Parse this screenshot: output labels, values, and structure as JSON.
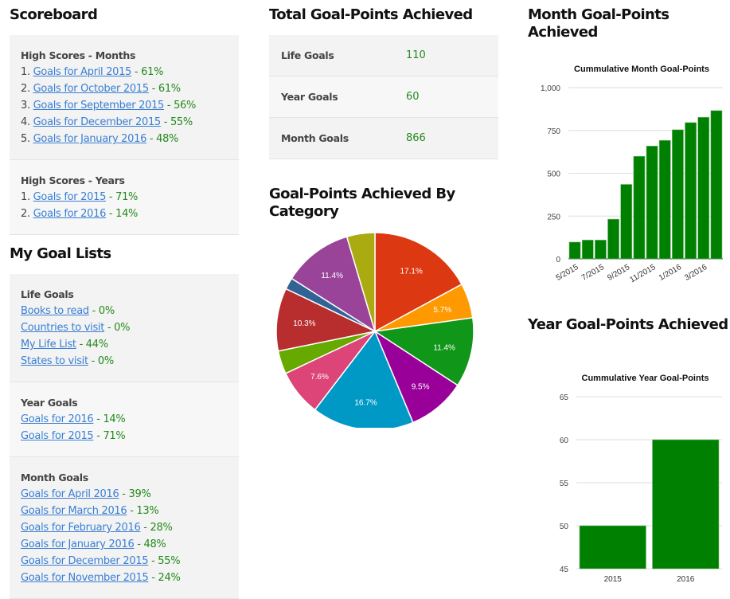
{
  "scoreboard": {
    "title": "Scoreboard",
    "months": {
      "heading": "High Scores - Months",
      "items": [
        {
          "rank": "1. ",
          "label": "Goals for April 2015",
          "pct": " - 61%"
        },
        {
          "rank": "2. ",
          "label": "Goals for October 2015",
          "pct": " - 61%"
        },
        {
          "rank": "3. ",
          "label": "Goals for September 2015",
          "pct": " - 56%"
        },
        {
          "rank": "4. ",
          "label": "Goals for December 2015",
          "pct": " - 55%"
        },
        {
          "rank": "5. ",
          "label": "Goals for January 2016",
          "pct": " - 48%"
        }
      ]
    },
    "years": {
      "heading": "High Scores - Years",
      "items": [
        {
          "rank": "1. ",
          "label": "Goals for 2015",
          "pct": " - 71%"
        },
        {
          "rank": "2. ",
          "label": "Goals for 2016",
          "pct": " - 14%"
        }
      ]
    }
  },
  "goal_lists": {
    "title": "My Goal Lists",
    "life": {
      "heading": "Life Goals",
      "items": [
        {
          "label": "Books to read",
          "pct": " - 0%"
        },
        {
          "label": "Countries to visit",
          "pct": " - 0%"
        },
        {
          "label": "My Life List",
          "pct": " - 44%"
        },
        {
          "label": "States to visit",
          "pct": " - 0%"
        }
      ]
    },
    "year": {
      "heading": "Year Goals",
      "items": [
        {
          "label": "Goals for 2016",
          "pct": " - 14%"
        },
        {
          "label": "Goals for 2015",
          "pct": " - 71%"
        }
      ]
    },
    "month": {
      "heading": "Month Goals",
      "items": [
        {
          "label": "Goals for April 2016",
          "pct": " - 39%"
        },
        {
          "label": "Goals for March 2016",
          "pct": " - 13%"
        },
        {
          "label": "Goals for February 2016",
          "pct": " - 28%"
        },
        {
          "label": "Goals for January 2016",
          "pct": " - 48%"
        },
        {
          "label": "Goals for December 2015",
          "pct": " - 55%"
        },
        {
          "label": "Goals for November 2015",
          "pct": " - 24%"
        }
      ]
    }
  },
  "totals": {
    "title": "Total Goal-Points Achieved",
    "rows": [
      {
        "label": "Life Goals",
        "value": "110"
      },
      {
        "label": "Year Goals",
        "value": "60"
      },
      {
        "label": "Month Goals",
        "value": "866"
      }
    ]
  },
  "category_section": {
    "title": "Goal-Points Achieved By Category"
  },
  "month_section": {
    "title": "Month Goal-Points Achieved"
  },
  "year_section": {
    "title": "Year Goal-Points Achieved"
  },
  "chart_data": [
    {
      "type": "pie",
      "title": "",
      "slices": [
        {
          "value": 17.1,
          "label": "17.1%",
          "color": "#dc3912"
        },
        {
          "value": 5.7,
          "label": "5.7%",
          "color": "#ff9900"
        },
        {
          "value": 11.4,
          "label": "11.4%",
          "color": "#109618"
        },
        {
          "value": 9.5,
          "label": "9.5%",
          "color": "#990099"
        },
        {
          "value": 16.7,
          "label": "16.7%",
          "color": "#0099c6"
        },
        {
          "value": 7.6,
          "label": "7.6%",
          "color": "#dd4477"
        },
        {
          "value": 3.8,
          "label": "",
          "color": "#66aa00"
        },
        {
          "value": 10.3,
          "label": "10.3%",
          "color": "#b82e2e"
        },
        {
          "value": 1.9,
          "label": "",
          "color": "#316395"
        },
        {
          "value": 11.4,
          "label": "11.4%",
          "color": "#994499"
        },
        {
          "value": 4.6,
          "label": "",
          "color": "#aaaa11"
        }
      ]
    },
    {
      "type": "bar",
      "title": "Cummulative Month Goal-Points",
      "categories": [
        "5/2015",
        "6/2015",
        "7/2015",
        "8/2015",
        "9/2015",
        "10/2015",
        "11/2015",
        "12/2015",
        "1/2016",
        "2/2016",
        "3/2016",
        "4/2016"
      ],
      "tick_labels": [
        "5/2015",
        "7/2015",
        "9/2015",
        "11/2015",
        "1/2016",
        "3/2016"
      ],
      "values": [
        98,
        110,
        110,
        232,
        435,
        599,
        659,
        692,
        754,
        796,
        827,
        866
      ],
      "yticks": [
        0,
        250,
        500,
        750,
        1000
      ],
      "ytick_labels": [
        "0",
        "250",
        "500",
        "750",
        "1,000"
      ],
      "ylim": [
        0,
        1000
      ],
      "xlabel": "",
      "ylabel": "",
      "color": "#008000",
      "grid": true
    },
    {
      "type": "bar",
      "title": "Cummulative Year Goal-Points",
      "categories": [
        "2015",
        "2016"
      ],
      "values": [
        50,
        60
      ],
      "yticks": [
        45,
        50,
        55,
        60,
        65
      ],
      "ytick_labels": [
        "45",
        "50",
        "55",
        "60",
        "65"
      ],
      "ylim": [
        45,
        65
      ],
      "xlabel": "",
      "ylabel": "",
      "color": "#008000",
      "grid": true
    }
  ]
}
